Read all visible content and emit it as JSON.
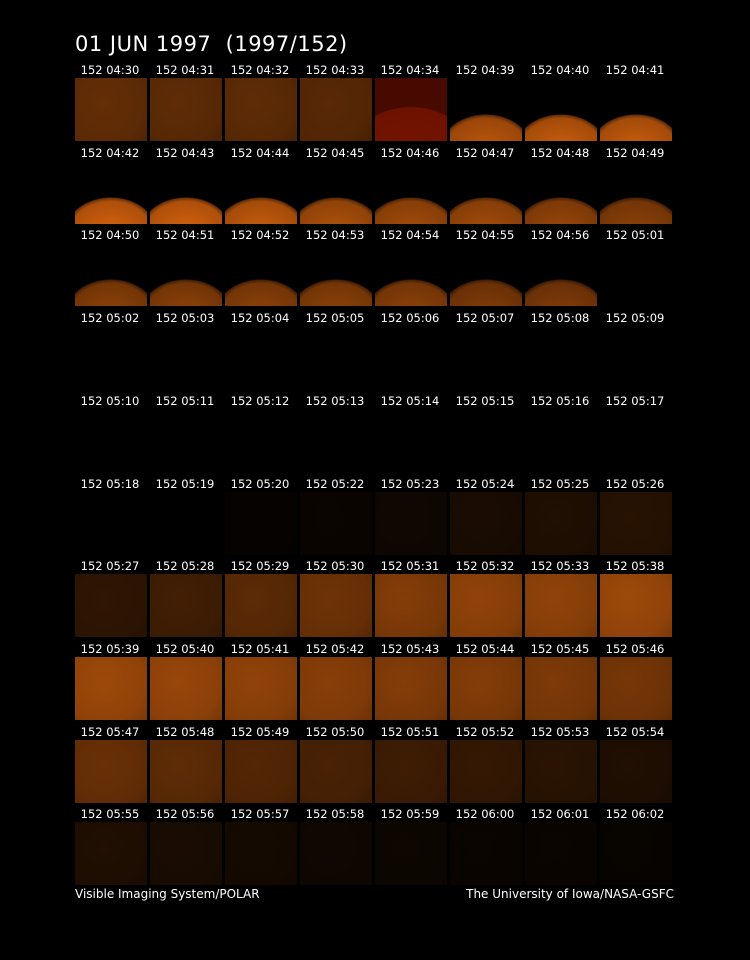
{
  "title": "01 JUN 1997  (1997/152)",
  "frames": [
    [
      "152 04:30",
      "152 04:31",
      "152 04:32",
      "152 04:33",
      "152 04:34",
      "152 04:39",
      "152 04:40",
      "152 04:41"
    ],
    [
      "152 04:42",
      "152 04:43",
      "152 04:44",
      "152 04:45",
      "152 04:46",
      "152 04:47",
      "152 04:48",
      "152 04:49"
    ],
    [
      "152 04:50",
      "152 04:51",
      "152 04:52",
      "152 04:53",
      "152 04:54",
      "152 04:55",
      "152 04:56",
      "152 05:01"
    ],
    [
      "152 05:02",
      "152 05:03",
      "152 05:04",
      "152 05:05",
      "152 05:06",
      "152 05:07",
      "152 05:08",
      "152 05:09"
    ],
    [
      "152 05:10",
      "152 05:11",
      "152 05:12",
      "152 05:13",
      "152 05:14",
      "152 05:15",
      "152 05:16",
      "152 05:17"
    ],
    [
      "152 05:18",
      "152 05:19",
      "152 05:20",
      "152 05:22",
      "152 05:23",
      "152 05:24",
      "152 05:25",
      "152 05:26"
    ],
    [
      "152 05:27",
      "152 05:28",
      "152 05:29",
      "152 05:30",
      "152 05:31",
      "152 05:32",
      "152 05:33",
      "152 05:38"
    ],
    [
      "152 05:39",
      "152 05:40",
      "152 05:41",
      "152 05:42",
      "152 05:43",
      "152 05:44",
      "152 05:45",
      "152 05:46"
    ],
    [
      "152 05:47",
      "152 05:48",
      "152 05:49",
      "152 05:50",
      "152 05:51",
      "152 05:52",
      "152 05:53",
      "152 05:54"
    ],
    [
      "152 05:55",
      "152 05:56",
      "152 05:57",
      "152 05:58",
      "152 05:59",
      "152 06:00",
      "152 06:01",
      "152 06:02"
    ]
  ],
  "footer": {
    "left": "Visible Imaging System/POLAR",
    "right": "The University of Iowa/NASA-GSFC"
  }
}
